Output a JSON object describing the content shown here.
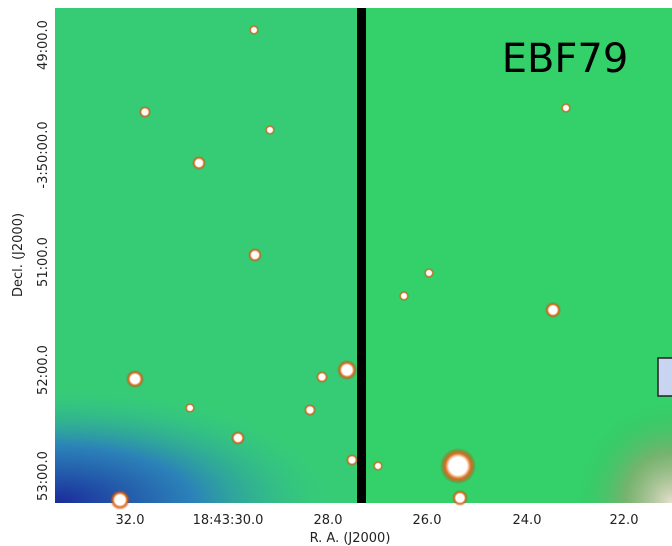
{
  "image": {
    "label": "EBF79"
  },
  "x_axis": {
    "title": "R. A. (J2000)",
    "ticks": [
      "32.0",
      "18:43:30.0",
      "28.0",
      "26.0",
      "24.0",
      "22.0"
    ]
  },
  "y_axis": {
    "title": "Decl. (J2000)",
    "ticks": [
      "49:00.0",
      "-3:50:00.0",
      "51:00.0",
      "52:00.0",
      "53:00.0"
    ]
  }
}
